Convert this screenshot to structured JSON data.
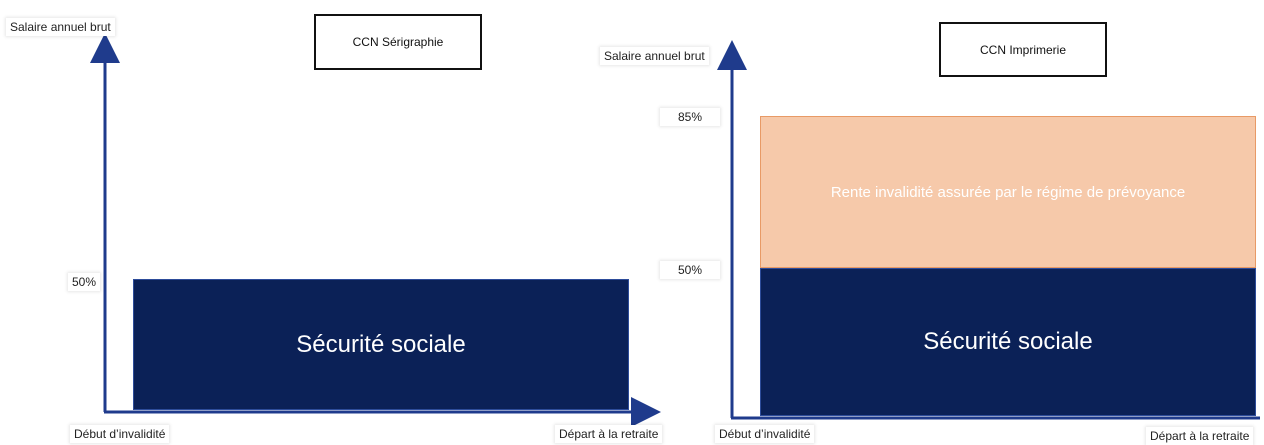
{
  "left_chart": {
    "title": "CCN Sérigraphie",
    "y_axis_label": "Salaire annuel brut",
    "x_start_label": "Début d’invalidité",
    "x_end_label": "Départ à la retraite",
    "tick_50": "50%",
    "block_label": "Sécurité sociale"
  },
  "right_chart": {
    "title": "CCN Imprimerie",
    "y_axis_label": "Salaire annuel brut",
    "x_start_label": "Début d’invalidité",
    "x_end_label": "Départ à la retraite",
    "tick_85": "85%",
    "tick_50": "50%",
    "lower_block_label": "Sécurité sociale",
    "upper_block_label": "Rente invalidité assurée par le régime de prévoyance"
  },
  "colors": {
    "navy": "#0b2157",
    "peach": "#f6c9aa",
    "axis": "#1f3b8c"
  }
}
